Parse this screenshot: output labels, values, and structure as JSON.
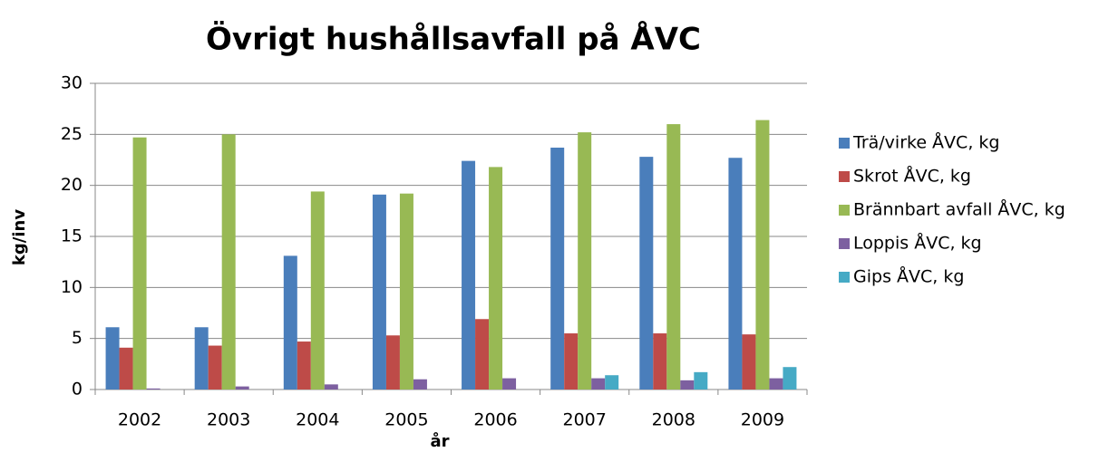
{
  "chart_data": {
    "type": "bar",
    "title": "Övrigt hushållsavfall på ÅVC",
    "x_label": "år",
    "y_label": "kg/inv",
    "categories": [
      "2002",
      "2003",
      "2004",
      "2005",
      "2006",
      "2007",
      "2008",
      "2009"
    ],
    "series": [
      {
        "name": "Trä/virke ÅVC, kg",
        "color": "#4a7ebb",
        "values": [
          6.1,
          6.1,
          13.1,
          19.1,
          22.4,
          23.7,
          22.8,
          22.7
        ]
      },
      {
        "name": "Skrot ÅVC, kg",
        "color": "#be4b48",
        "values": [
          4.1,
          4.3,
          4.7,
          5.3,
          6.9,
          5.5,
          5.5,
          5.4
        ]
      },
      {
        "name": "Brännbart avfall ÅVC, kg",
        "color": "#98b954",
        "values": [
          24.7,
          25.0,
          19.4,
          19.2,
          21.8,
          25.2,
          26.0,
          26.4
        ]
      },
      {
        "name": "Loppis ÅVC, kg",
        "color": "#7d60a0",
        "values": [
          0.1,
          0.3,
          0.5,
          1.0,
          1.1,
          1.1,
          0.9,
          1.1
        ]
      },
      {
        "name": "Gips ÅVC, kg",
        "color": "#46aac5",
        "values": [
          0,
          0,
          0,
          0,
          0,
          1.4,
          1.7,
          2.2
        ]
      }
    ],
    "ylim": [
      0,
      30
    ],
    "yticks": [
      0,
      5,
      10,
      15,
      20,
      25,
      30
    ],
    "grid": true,
    "legend": "right"
  }
}
